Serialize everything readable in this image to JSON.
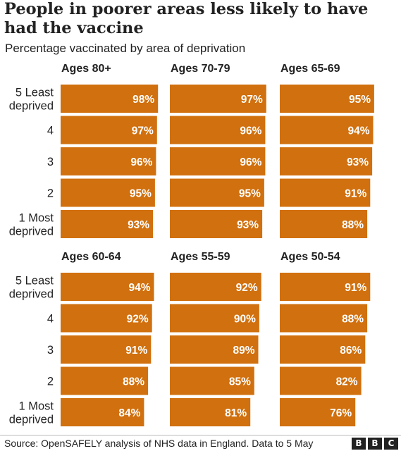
{
  "title": "People in poorer areas less likely to have had the vaccine",
  "subtitle": "Percentage vaccinated by area of deprivation",
  "source": "Source: OpenSAFELY analysis of NHS data in England. Data to 5 May",
  "logo": {
    "letters": [
      "B",
      "B",
      "C"
    ]
  },
  "colors": {
    "bar": "#d1700e",
    "bar_label": "#ffffff",
    "text": "#222222"
  },
  "chart_data": {
    "type": "bar",
    "orientation": "horizontal",
    "xlim": [
      0,
      100
    ],
    "unit": "%",
    "categories": [
      [
        "5 Least",
        "deprived"
      ],
      [
        "4"
      ],
      [
        "3"
      ],
      [
        "2"
      ],
      [
        "1 Most",
        "deprived"
      ]
    ],
    "panels": [
      {
        "title": "Ages 80+",
        "values": [
          98,
          97,
          96,
          95,
          93
        ]
      },
      {
        "title": "Ages 70-79",
        "values": [
          97,
          96,
          96,
          95,
          93
        ]
      },
      {
        "title": "Ages 65-69",
        "values": [
          95,
          94,
          93,
          91,
          88
        ]
      },
      {
        "title": "Ages 60-64",
        "values": [
          94,
          92,
          91,
          88,
          84
        ]
      },
      {
        "title": "Ages 55-59",
        "values": [
          92,
          90,
          89,
          85,
          81
        ]
      },
      {
        "title": "Ages 50-54",
        "values": [
          91,
          88,
          86,
          82,
          76
        ]
      }
    ]
  }
}
